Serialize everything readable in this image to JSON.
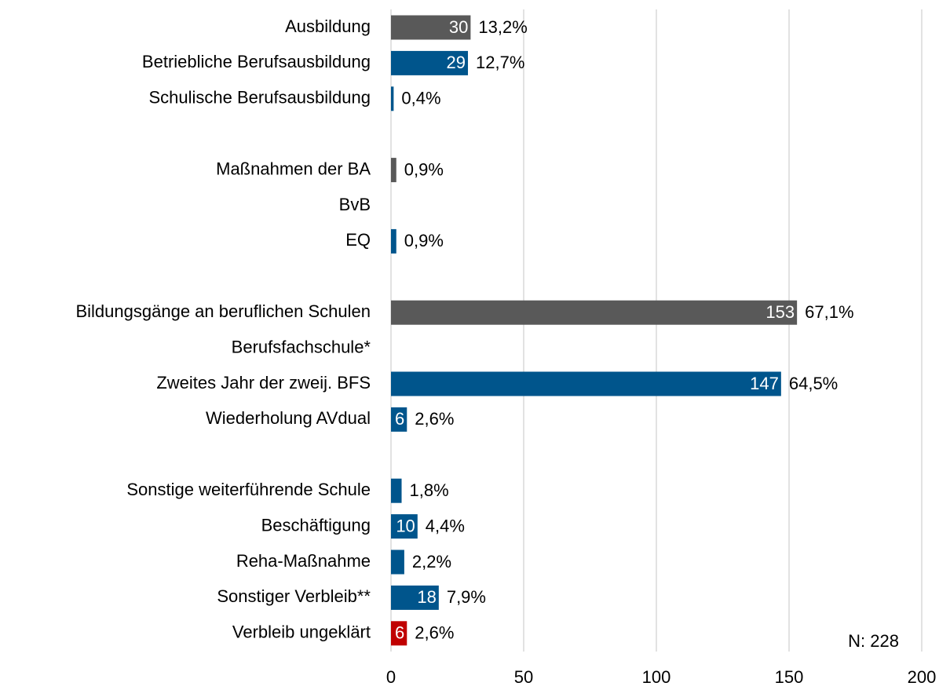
{
  "chart_data": {
    "type": "bar",
    "orientation": "horizontal",
    "categories": [
      "Ausbildung",
      "Betriebliche Berufsausbildung",
      "Schulische Berufsausbildung",
      null,
      "Maßnahmen der BA",
      "BvB",
      "EQ",
      null,
      "Bildungsgänge an beruflichen Schulen",
      "Berufsfachschule*",
      "Zweites Jahr der zweij. BFS",
      "Wiederholung AVdual",
      null,
      "Sonstige weiterführende Schule",
      "Beschäftigung",
      "Reha-Maßnahme",
      "Sonstiger Verbleib**",
      "Verbleib ungeklärt"
    ],
    "values": [
      30,
      29,
      1,
      null,
      2,
      null,
      2,
      null,
      153,
      null,
      147,
      6,
      null,
      4,
      10,
      5,
      18,
      6
    ],
    "value_labels": [
      "30",
      "29",
      null,
      null,
      null,
      null,
      null,
      null,
      "153",
      null,
      "147",
      "6",
      null,
      null,
      "10",
      null,
      "18",
      "6"
    ],
    "shares": [
      13.2,
      12.7,
      0.4,
      null,
      0.9,
      null,
      0.9,
      null,
      67.1,
      null,
      64.5,
      2.6,
      null,
      1.8,
      4.4,
      2.2,
      7.9,
      2.6
    ],
    "share_labels": [
      "13,2%",
      "12,7%",
      "0,4%",
      null,
      "0,9%",
      null,
      "0,9%",
      null,
      "67,1%",
      null,
      "64,5%",
      "2,6%",
      null,
      "1,8%",
      "4,4%",
      "2,2%",
      "7,9%",
      "2,6%"
    ],
    "colors": [
      "#595959",
      "#00558c",
      "#00558c",
      null,
      "#595959",
      null,
      "#00558c",
      null,
      "#595959",
      null,
      "#00558c",
      "#00558c",
      null,
      "#00558c",
      "#00558c",
      "#00558c",
      "#00558c",
      "#c00000"
    ],
    "xlim": [
      0,
      200
    ],
    "xticks": [
      0,
      50,
      100,
      150,
      200
    ],
    "grid": true,
    "annotation": "N: 228"
  }
}
